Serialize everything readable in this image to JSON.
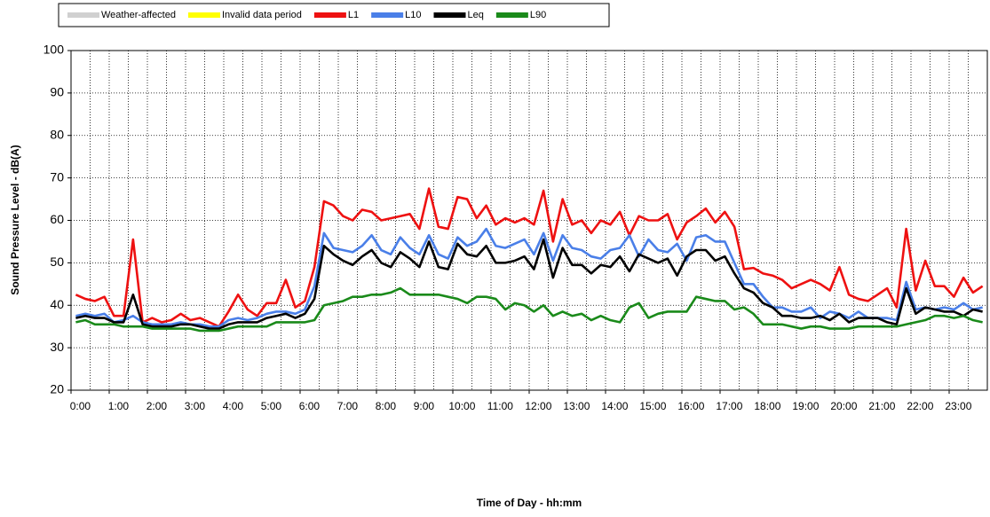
{
  "chart_data": {
    "type": "line",
    "xlabel": "Time of Day - hh:mm",
    "ylabel": "Sound Pressure Level - dB(A)",
    "ylim": [
      20,
      100
    ],
    "yticks": [
      20,
      30,
      40,
      50,
      60,
      70,
      80,
      90,
      100
    ],
    "grid": true,
    "legend_position": "top",
    "legend_extra": [
      {
        "name": "Weather-affected",
        "color": "#d0d0d0"
      },
      {
        "name": "Invalid data period",
        "color": "#ffff00"
      }
    ],
    "categories": [
      "0:00",
      null,
      null,
      null,
      "1:00",
      null,
      null,
      null,
      "2:00",
      null,
      null,
      null,
      "3:00",
      null,
      null,
      null,
      "4:00",
      null,
      null,
      null,
      "5:00",
      null,
      null,
      null,
      "6:00",
      null,
      null,
      null,
      "7:00",
      null,
      null,
      null,
      "8:00",
      null,
      null,
      null,
      "9:00",
      null,
      null,
      null,
      "10:00",
      null,
      null,
      null,
      "11:00",
      null,
      null,
      null,
      "12:00",
      null,
      null,
      null,
      "13:00",
      null,
      null,
      null,
      "14:00",
      null,
      null,
      null,
      "15:00",
      null,
      null,
      null,
      "16:00",
      null,
      null,
      null,
      "17:00",
      null,
      null,
      null,
      "18:00",
      null,
      null,
      null,
      "19:00",
      null,
      null,
      null,
      "20:00",
      null,
      null,
      null,
      "21:00",
      null,
      null,
      null,
      "22:00",
      null,
      null,
      null,
      "23:00",
      null,
      null,
      null
    ],
    "series": [
      {
        "name": "L1",
        "color": "#ee1111",
        "values": [
          42.5,
          41.5,
          41,
          42,
          37.5,
          37.5,
          55.5,
          36,
          37,
          36,
          36.5,
          38,
          36.5,
          37,
          36,
          35,
          38.5,
          42.5,
          39,
          37.5,
          40.5,
          40.5,
          46,
          39.5,
          41,
          49,
          64.5,
          63.5,
          61,
          60,
          62.5,
          62,
          60,
          60.5,
          61,
          61.5,
          58,
          67.5,
          58.5,
          58,
          65.5,
          65,
          60.5,
          63.5,
          59,
          60.5,
          59.5,
          60.5,
          59,
          67,
          55,
          65,
          59,
          60,
          57,
          60,
          59,
          62,
          56.5,
          61,
          60,
          60,
          61.5,
          55.5,
          59.5,
          61,
          62.8,
          59.5,
          62,
          58.5,
          48.5,
          48.8,
          47.5,
          47,
          46,
          44,
          45,
          46,
          45,
          43.5,
          49,
          42.5,
          41.5,
          41,
          42.5,
          44,
          39.5,
          58,
          43.5,
          50.5,
          44.5,
          44.5,
          42,
          46.5,
          43,
          44.5
        ]
      },
      {
        "name": "L10",
        "color": "#4a7fe8",
        "values": [
          37.5,
          38,
          37.5,
          38,
          36,
          36.5,
          37.5,
          36,
          35.5,
          35.5,
          35.5,
          36,
          35.5,
          35.5,
          35,
          35,
          36.5,
          37,
          36.5,
          37,
          38,
          38.5,
          38.5,
          38,
          39,
          44.5,
          57,
          53.5,
          53,
          52.5,
          54,
          56.5,
          53,
          52,
          56,
          53.5,
          52,
          56.5,
          52,
          51,
          56,
          54,
          55,
          58,
          54,
          53.5,
          54.5,
          55.5,
          52,
          57,
          50.5,
          56.5,
          53.5,
          53,
          51.5,
          51,
          53,
          53.5,
          56.5,
          51.5,
          55.5,
          53,
          52.5,
          54.5,
          50.5,
          56,
          56.5,
          55,
          55,
          50,
          45,
          45,
          42,
          39.5,
          39.5,
          38.5,
          38.5,
          39.5,
          37,
          38.5,
          38,
          37,
          38.5,
          37,
          37,
          37,
          36.5,
          45.5,
          39,
          39.5,
          39,
          39.5,
          39,
          40.5,
          39,
          39.5
        ]
      },
      {
        "name": "Leq",
        "color": "#000000",
        "values": [
          37,
          37.5,
          37,
          37,
          36,
          36,
          42.5,
          35.5,
          35,
          35,
          35,
          35.5,
          35.5,
          35,
          34.5,
          34.5,
          35.5,
          36,
          36,
          36,
          37,
          37.5,
          38,
          37,
          38,
          41.5,
          54,
          52,
          50.5,
          49.5,
          51.5,
          53,
          50,
          49,
          52.5,
          51,
          49,
          55,
          49,
          48.5,
          54.5,
          52,
          51.5,
          54,
          50,
          50,
          50.5,
          51.5,
          48.5,
          55.5,
          46.5,
          53.5,
          49.5,
          49.5,
          47.5,
          49.5,
          49,
          51.5,
          48,
          52,
          51,
          50,
          51,
          47,
          51.5,
          53,
          53,
          50.5,
          51.5,
          47.5,
          44,
          43,
          40.5,
          39.5,
          37.5,
          37.5,
          37,
          37,
          37.5,
          36.5,
          38,
          36,
          37,
          37,
          37,
          36,
          35.5,
          44,
          38,
          39.5,
          39,
          38.5,
          38.5,
          37.5,
          39,
          38.5
        ]
      },
      {
        "name": "L90",
        "color": "#1a8a1a",
        "values": [
          36,
          36.5,
          35.5,
          35.5,
          35.5,
          35,
          35,
          35,
          34.5,
          34.5,
          34.5,
          34.5,
          34.5,
          34,
          34,
          34,
          34.5,
          35,
          35,
          35,
          35,
          36,
          36,
          36,
          36,
          36.5,
          40,
          40.5,
          41,
          42,
          42,
          42.5,
          42.5,
          43,
          44,
          42.5,
          42.5,
          42.5,
          42.5,
          42,
          41.5,
          40.5,
          42,
          42,
          41.5,
          39,
          40.5,
          40,
          38.5,
          40,
          37.5,
          38.5,
          37.5,
          38,
          36.5,
          37.5,
          36.5,
          36,
          39.5,
          40.5,
          37,
          38,
          38.5,
          38.5,
          38.5,
          42,
          41.5,
          41,
          41,
          39,
          39.5,
          38,
          35.5,
          35.5,
          35.5,
          35,
          34.5,
          35,
          35,
          34.5,
          34.5,
          34.5,
          35,
          35,
          35,
          35,
          35,
          35.5,
          36,
          36.5,
          37.5,
          37.5,
          37,
          37.5,
          36.5,
          36
        ]
      }
    ]
  }
}
